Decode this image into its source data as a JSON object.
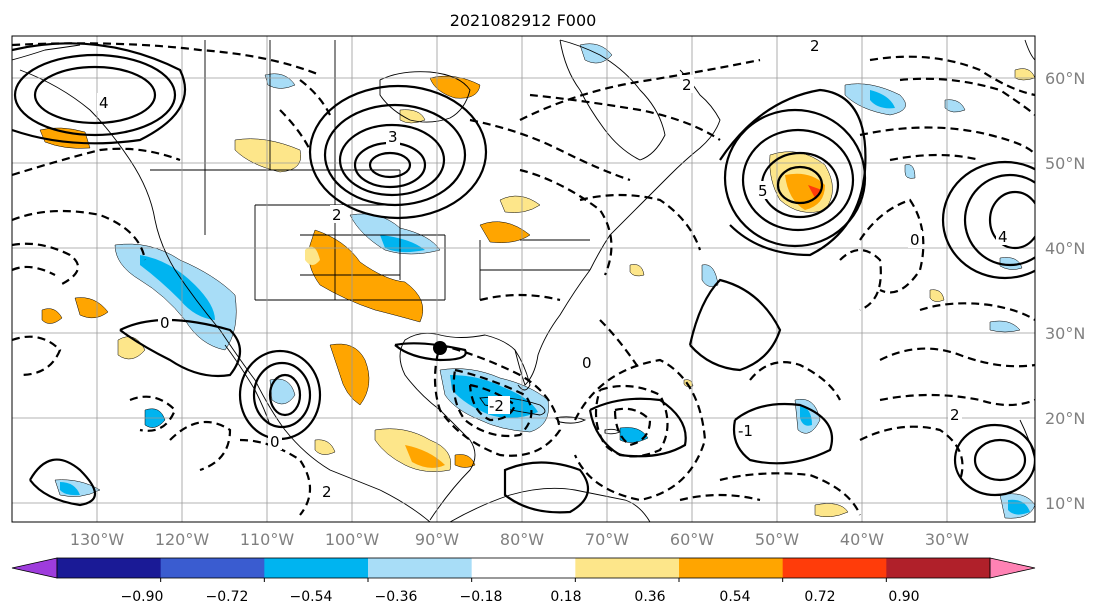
{
  "map": {
    "title": "2021082912 F000",
    "lat_labels": [
      "60°N",
      "50°N",
      "40°N",
      "30°N",
      "20°N",
      "10°N"
    ],
    "lon_labels": [
      "130°W",
      "120°W",
      "110°W",
      "100°W",
      "90°W",
      "80°W",
      "70°W",
      "60°W",
      "50°W",
      "40°W",
      "30°W"
    ],
    "contour_labels": {
      "ne_pacific_high": "4",
      "hudson_low": "3",
      "north_atlantic_low": "5",
      "gulf_low": "-2",
      "east_atlantic_high": "4",
      "west_atlantic_one": "-1",
      "zero": "0",
      "two": "2"
    }
  },
  "colorbar": {
    "ticks": [
      "−0.90",
      "−0.72",
      "−0.54",
      "−0.36",
      "−0.18",
      "0.18",
      "0.36",
      "0.54",
      "0.72",
      "0.90"
    ],
    "colors": [
      "#9e3cdc",
      "#1a1a96",
      "#3a5cd0",
      "#00b4f0",
      "#a8ddf7",
      "#ffffff",
      "#fde68a",
      "#ffa500",
      "#ff3c0a",
      "#b0202a",
      "#ff82b4"
    ]
  }
}
